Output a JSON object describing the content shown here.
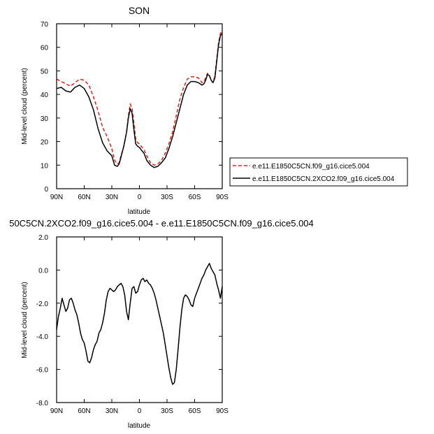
{
  "chart_data": [
    {
      "type": "line",
      "title": "SON",
      "xlabel": "latitude",
      "ylabel": "Mid-level cloud (percent)",
      "xlim": [
        90,
        -90
      ],
      "ylim": [
        0,
        70
      ],
      "xticks": [
        90,
        60,
        30,
        0,
        -30,
        -60,
        -90
      ],
      "xtick_labels": [
        "90N",
        "60N",
        "30N",
        "0",
        "30S",
        "60S",
        "90S"
      ],
      "yticks": [
        0,
        10,
        20,
        30,
        40,
        50,
        60,
        70
      ],
      "ytick_labels": [
        "0",
        "10",
        "20",
        "30",
        "40",
        "50",
        "60",
        "70"
      ],
      "grid": false,
      "legend": "right",
      "series": [
        {
          "name": "e.e11.E1850C5CN.f09_g16.cice5.004",
          "color": "#e0201a",
          "dash": "dashed",
          "x": [
            90,
            85,
            80,
            75,
            70,
            65,
            60,
            55,
            50,
            45,
            40,
            35,
            30,
            27,
            24,
            22,
            20,
            17,
            14,
            12,
            10,
            8,
            6,
            4,
            2,
            0,
            -2,
            -5,
            -8,
            -12,
            -16,
            -20,
            -24,
            -28,
            -32,
            -36,
            -40,
            -44,
            -48,
            -52,
            -56,
            -60,
            -64,
            -68,
            -70,
            -72,
            -74,
            -76,
            -78,
            -80,
            -82,
            -84,
            -86,
            -88,
            -90
          ],
          "y": [
            46.5,
            45.5,
            44.5,
            43.5,
            45,
            46.5,
            46,
            44,
            39,
            33,
            26,
            22,
            17,
            12,
            10.5,
            11,
            14,
            18,
            24,
            31,
            36,
            34,
            28,
            21,
            19.5,
            19,
            18,
            16.5,
            14,
            11,
            10,
            10.5,
            12,
            15,
            19,
            24,
            31,
            38,
            43,
            46.5,
            47.5,
            47.5,
            47,
            45,
            45.5,
            47,
            49,
            48,
            46,
            45,
            48,
            55,
            62,
            66,
            67
          ]
        },
        {
          "name": "e.e11.E1850C5CN.2XCO2.f09_g16.cice5.004",
          "color": "#000000",
          "dash": "solid",
          "x": [
            90,
            85,
            80,
            75,
            70,
            65,
            60,
            55,
            50,
            45,
            40,
            35,
            30,
            27,
            24,
            22,
            20,
            17,
            14,
            12,
            10,
            8,
            6,
            4,
            2,
            0,
            -2,
            -5,
            -8,
            -12,
            -16,
            -20,
            -24,
            -28,
            -32,
            -36,
            -40,
            -44,
            -48,
            -52,
            -56,
            -60,
            -64,
            -68,
            -70,
            -72,
            -74,
            -76,
            -78,
            -80,
            -82,
            -84,
            -86,
            -88,
            -90
          ],
          "y": [
            42.5,
            43,
            41.5,
            41,
            43,
            44,
            42.5,
            39,
            33.5,
            25.5,
            19.5,
            16,
            14,
            10,
            9.5,
            10.5,
            13.5,
            18,
            24,
            30,
            34,
            32,
            25,
            19,
            18,
            17.5,
            16.5,
            15,
            12,
            10,
            9,
            9.5,
            11,
            13,
            17,
            22,
            28,
            34,
            40,
            44,
            45.5,
            45.5,
            45,
            44,
            44.5,
            46,
            48.5,
            48,
            46,
            45,
            47,
            54,
            61,
            65,
            66
          ]
        }
      ]
    },
    {
      "type": "line",
      "title": "50C5CN.2XCO2.f09_g16.cice5.004 - e.e11.E1850C5CN.f09_g16.cice5.004",
      "xlabel": "latitude",
      "ylabel": "Mid-level cloud (percent)",
      "xlim": [
        90,
        -90
      ],
      "ylim": [
        -8,
        2
      ],
      "xticks": [
        90,
        60,
        30,
        0,
        -30,
        -60,
        -90
      ],
      "xtick_labels": [
        "90N",
        "60N",
        "30N",
        "0",
        "30S",
        "60S",
        "90S"
      ],
      "yticks": [
        -8,
        -6,
        -4,
        -2,
        0,
        2
      ],
      "ytick_labels": [
        "-8.0",
        "-6.0",
        "-4.0",
        "-2.0",
        "0.0",
        "2.0"
      ],
      "grid": false,
      "legend": "none",
      "series": [
        {
          "color": "#000000",
          "dash": "solid",
          "x": [
            90,
            88,
            86,
            84,
            82,
            80,
            78,
            76,
            74,
            72,
            70,
            68,
            66,
            64,
            62,
            60,
            58,
            56,
            54,
            52,
            50,
            48,
            46,
            44,
            42,
            40,
            38,
            36,
            34,
            32,
            30,
            28,
            26,
            24,
            22,
            20,
            18,
            16,
            14,
            12,
            10,
            8,
            6,
            4,
            2,
            0,
            -2,
            -4,
            -6,
            -8,
            -10,
            -12,
            -14,
            -16,
            -18,
            -20,
            -22,
            -24,
            -26,
            -28,
            -30,
            -32,
            -34,
            -36,
            -38,
            -40,
            -42,
            -44,
            -46,
            -48,
            -50,
            -52,
            -54,
            -56,
            -58,
            -60,
            -62,
            -64,
            -66,
            -68,
            -70,
            -72,
            -74,
            -76,
            -78,
            -80,
            -82,
            -84,
            -86,
            -88,
            -90
          ],
          "y": [
            -3.6,
            -2.8,
            -2.3,
            -1.7,
            -2.1,
            -2.5,
            -2.3,
            -1.8,
            -1.7,
            -2.0,
            -2.4,
            -2.7,
            -3.2,
            -3.8,
            -4.2,
            -4.4,
            -4.9,
            -5.5,
            -5.6,
            -5.3,
            -4.8,
            -4.5,
            -4.3,
            -3.8,
            -3.6,
            -3.2,
            -2.6,
            -1.8,
            -1.3,
            -1.1,
            -1.2,
            -1.3,
            -1.2,
            -1.0,
            -0.9,
            -0.8,
            -1.0,
            -1.5,
            -2.5,
            -3.0,
            -2.0,
            -1.1,
            -1.0,
            -1.4,
            -1.3,
            -0.9,
            -0.6,
            -0.5,
            -0.7,
            -0.6,
            -0.8,
            -0.9,
            -1.1,
            -1.4,
            -1.8,
            -2.3,
            -2.8,
            -3.3,
            -3.8,
            -4.5,
            -5.2,
            -5.9,
            -6.5,
            -6.9,
            -6.8,
            -6.0,
            -4.8,
            -3.5,
            -2.4,
            -1.7,
            -1.5,
            -1.6,
            -1.8,
            -2.1,
            -2.2,
            -1.7,
            -1.4,
            -1.1,
            -0.8,
            -0.5,
            -0.3,
            0.0,
            0.2,
            0.4,
            0.1,
            -0.1,
            -0.3,
            -0.8,
            -1.2,
            -1.7,
            -1.0
          ]
        }
      ]
    }
  ]
}
